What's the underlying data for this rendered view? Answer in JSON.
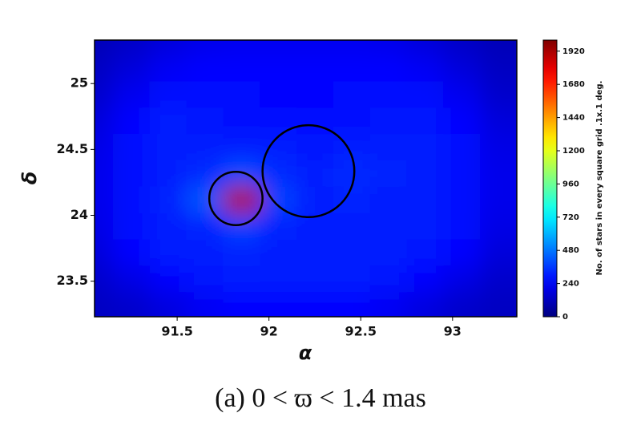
{
  "chart_data": {
    "type": "heatmap",
    "xlabel": "α",
    "ylabel": "δ",
    "colorbar_label": "No. of stars in every square grid .1x.1 deg.",
    "caption": "(a) 0 < ϖ < 1.4 mas",
    "colormap": "jet",
    "xlim": [
      91.05,
      93.35
    ],
    "ylim": [
      23.23,
      25.33
    ],
    "xticks": [
      91.5,
      92.0,
      92.5,
      93.0
    ],
    "yticks": [
      23.5,
      24.0,
      24.5,
      25.0
    ],
    "clim": [
      0,
      2000
    ],
    "cticks": [
      0,
      240,
      480,
      720,
      960,
      1200,
      1440,
      1680,
      1920
    ],
    "x": [
      91.05,
      91.25,
      91.45,
      91.65,
      91.85,
      92.05,
      92.25,
      92.45,
      92.65,
      92.85,
      93.05,
      93.25
    ],
    "y": [
      23.32,
      23.52,
      23.72,
      23.92,
      24.12,
      24.32,
      24.52,
      24.72,
      24.92,
      25.12,
      25.32
    ],
    "z": [
      [
        130,
        150,
        190,
        230,
        250,
        260,
        260,
        250,
        230,
        190,
        150,
        130
      ],
      [
        150,
        200,
        260,
        290,
        300,
        300,
        300,
        300,
        290,
        260,
        200,
        150
      ],
      [
        180,
        250,
        300,
        310,
        320,
        310,
        300,
        310,
        300,
        290,
        250,
        180
      ],
      [
        200,
        270,
        310,
        320,
        380,
        320,
        310,
        300,
        310,
        300,
        270,
        200
      ],
      [
        210,
        280,
        320,
        420,
        1900,
        380,
        310,
        320,
        300,
        300,
        280,
        210
      ],
      [
        210,
        280,
        310,
        330,
        400,
        330,
        310,
        330,
        320,
        300,
        280,
        210
      ],
      [
        200,
        270,
        310,
        300,
        310,
        300,
        290,
        300,
        300,
        300,
        270,
        200
      ],
      [
        180,
        250,
        300,
        290,
        280,
        280,
        270,
        280,
        290,
        290,
        250,
        180
      ],
      [
        150,
        220,
        280,
        280,
        270,
        260,
        260,
        270,
        280,
        270,
        220,
        150
      ],
      [
        130,
        180,
        230,
        260,
        260,
        250,
        250,
        260,
        250,
        230,
        180,
        130
      ],
      [
        110,
        140,
        180,
        210,
        220,
        220,
        220,
        220,
        210,
        180,
        140,
        110
      ]
    ],
    "circles": [
      {
        "x": 91.82,
        "y": 24.128,
        "r": 0.145
      },
      {
        "x": 92.215,
        "y": 24.335,
        "r": 0.25
      }
    ]
  }
}
